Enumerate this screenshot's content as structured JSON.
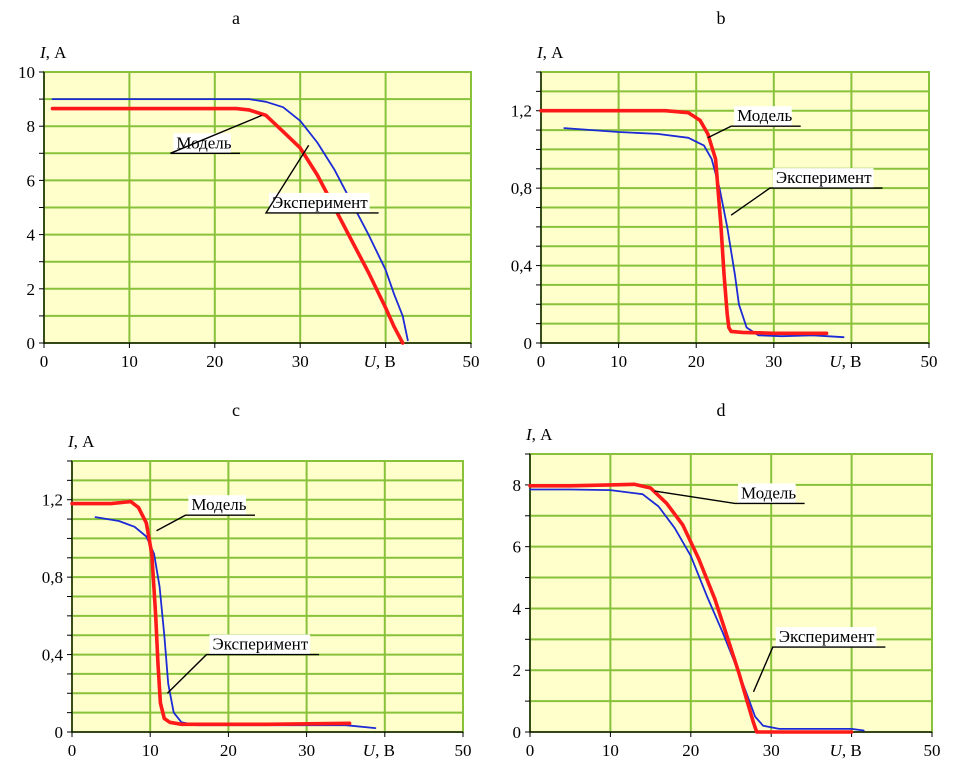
{
  "colors": {
    "plot_background": "#ffffcc",
    "grid": "#88c23a",
    "model": "#ff1a1a",
    "experiment": "#1c2bd6",
    "leader": "#000000"
  },
  "chart_data": [
    {
      "type": "line",
      "panel_label": "a",
      "xlabel_var": "U",
      "xlabel_unit": ", В",
      "ylabel_var": "I",
      "ylabel_unit": ", А",
      "xlim": [
        0,
        50
      ],
      "ylim": [
        0,
        10
      ],
      "xticks": [
        0,
        10,
        20,
        30,
        40,
        50
      ],
      "yticks": [
        0,
        2,
        4,
        6,
        8,
        10
      ],
      "ytick_labels": [
        "0",
        "2",
        "4",
        "6",
        "8",
        "10"
      ],
      "y_minor_step": 1,
      "grid": true,
      "series": [
        {
          "name": "Модель",
          "role": "model",
          "x": [
            1,
            10,
            20,
            22.5,
            24,
            26,
            28,
            30,
            32,
            34,
            36,
            38,
            40,
            41,
            42
          ],
          "y": [
            8.65,
            8.65,
            8.65,
            8.65,
            8.6,
            8.4,
            7.8,
            7.2,
            6.2,
            5.0,
            3.8,
            2.6,
            1.3,
            0.6,
            0
          ]
        },
        {
          "name": "Эксперимент",
          "role": "experiment",
          "x": [
            1,
            10,
            20,
            24,
            26,
            28,
            30,
            32,
            34,
            36,
            38,
            40,
            41,
            42,
            42.6
          ],
          "y": [
            9.0,
            9.0,
            9.0,
            9.0,
            8.9,
            8.7,
            8.2,
            7.4,
            6.4,
            5.2,
            4.0,
            2.7,
            1.8,
            1.0,
            0.1
          ]
        }
      ],
      "legend": [
        {
          "text": "Модель",
          "target": [
            25.5,
            8.4
          ],
          "label_at": [
            14.8,
            7.0
          ]
        },
        {
          "text": "Эксперимент",
          "target": [
            31,
            7.3
          ],
          "label_at": [
            26,
            4.8
          ]
        }
      ]
    },
    {
      "type": "line",
      "panel_label": "b",
      "xlabel_var": "U",
      "xlabel_unit": ", В",
      "ylabel_var": "I",
      "ylabel_unit": ", А",
      "xlim": [
        0,
        50
      ],
      "ylim": [
        0,
        1.4
      ],
      "xticks": [
        0,
        10,
        20,
        30,
        40,
        50
      ],
      "yticks": [
        0,
        0.4,
        0.8,
        1.2
      ],
      "ytick_labels": [
        "0",
        "0,4",
        "0,8",
        "1,2"
      ],
      "y_minor_step": 0.1,
      "grid": true,
      "series": [
        {
          "name": "Модель",
          "role": "model",
          "x": [
            0,
            16,
            19,
            20.5,
            21.5,
            22.5,
            23.2,
            23.6,
            24.0,
            24.2,
            24.5,
            26,
            30,
            33,
            36.8
          ],
          "y": [
            1.2,
            1.2,
            1.19,
            1.15,
            1.08,
            0.95,
            0.6,
            0.35,
            0.15,
            0.08,
            0.06,
            0.055,
            0.05,
            0.05,
            0.05
          ]
        },
        {
          "name": "Эксперимент",
          "role": "experiment",
          "x": [
            3,
            10,
            15,
            19,
            21,
            22,
            23,
            24,
            25,
            25.5,
            26.5,
            28,
            31,
            35,
            39
          ],
          "y": [
            1.11,
            1.09,
            1.08,
            1.06,
            1.02,
            0.95,
            0.8,
            0.6,
            0.35,
            0.2,
            0.08,
            0.04,
            0.035,
            0.04,
            0.03
          ]
        }
      ],
      "legend": [
        {
          "text": "Модель",
          "target": [
            21.5,
            1.06
          ],
          "label_at": [
            24.5,
            1.12
          ]
        },
        {
          "text": "Эксперимент",
          "target": [
            24.5,
            0.66
          ],
          "label_at": [
            29.5,
            0.8
          ]
        }
      ]
    },
    {
      "type": "line",
      "panel_label": "c",
      "xlabel_var": "U",
      "xlabel_unit": ", В",
      "ylabel_var": "I",
      "ylabel_unit": ", А",
      "xlim": [
        0,
        50
      ],
      "ylim": [
        0,
        1.4
      ],
      "xticks": [
        0,
        10,
        20,
        30,
        40,
        50
      ],
      "yticks": [
        0,
        0.4,
        0.8,
        1.2
      ],
      "ytick_labels": [
        "0",
        "0,4",
        "0,8",
        "1,2"
      ],
      "y_minor_step": 0.1,
      "grid": true,
      "series": [
        {
          "name": "Модель",
          "role": "model",
          "x": [
            0,
            5,
            7.5,
            8.5,
            9.5,
            10.2,
            10.7,
            11.0,
            11.3,
            11.8,
            12.5,
            14,
            17,
            25,
            35.5
          ],
          "y": [
            1.18,
            1.18,
            1.19,
            1.16,
            1.08,
            0.92,
            0.6,
            0.35,
            0.15,
            0.07,
            0.05,
            0.04,
            0.04,
            0.04,
            0.045
          ]
        },
        {
          "name": "Эксперимент",
          "role": "experiment",
          "x": [
            3,
            6,
            8,
            9.5,
            10.5,
            11.2,
            11.8,
            12.3,
            13,
            14,
            16,
            20,
            28,
            35,
            38.8
          ],
          "y": [
            1.11,
            1.09,
            1.06,
            1.01,
            0.92,
            0.75,
            0.5,
            0.25,
            0.1,
            0.05,
            0.035,
            0.035,
            0.035,
            0.035,
            0.02
          ]
        }
      ],
      "legend": [
        {
          "text": "Модель",
          "target": [
            10.8,
            1.04
          ],
          "label_at": [
            14.5,
            1.12
          ]
        },
        {
          "text": "Эксперимент",
          "target": [
            12.2,
            0.2
          ],
          "label_at": [
            17.2,
            0.4
          ]
        }
      ]
    },
    {
      "type": "line",
      "panel_label": "d",
      "xlabel_var": "U",
      "xlabel_unit": ", В",
      "ylabel_var": "I",
      "ylabel_unit": ", А",
      "xlim": [
        0,
        50
      ],
      "ylim": [
        0,
        9
      ],
      "xticks": [
        0,
        10,
        20,
        30,
        40,
        50
      ],
      "yticks": [
        0,
        2,
        4,
        6,
        8
      ],
      "ytick_labels": [
        "0",
        "2",
        "4",
        "6",
        "8"
      ],
      "y_minor_step": 1,
      "grid": true,
      "series": [
        {
          "name": "Модель",
          "role": "model",
          "x": [
            0,
            5,
            10,
            13,
            15,
            17,
            19,
            21,
            23,
            24,
            25,
            26,
            27,
            27.8,
            28.2,
            30,
            35,
            40
          ],
          "y": [
            7.97,
            7.97,
            8.0,
            8.02,
            7.9,
            7.4,
            6.7,
            5.6,
            4.3,
            3.5,
            2.7,
            1.9,
            1.0,
            0.3,
            0.0,
            0.0,
            0.0,
            0.0
          ]
        },
        {
          "name": "Эксперимент",
          "role": "experiment",
          "x": [
            0,
            5,
            10,
            14,
            16,
            18,
            20,
            22,
            24,
            26,
            27,
            28,
            29,
            31,
            35,
            40,
            41.5
          ],
          "y": [
            7.85,
            7.85,
            7.83,
            7.7,
            7.3,
            6.6,
            5.7,
            4.4,
            3.2,
            1.9,
            1.2,
            0.5,
            0.2,
            0.1,
            0.1,
            0.1,
            0.05
          ]
        }
      ],
      "legend": [
        {
          "text": "Модель",
          "target": [
            15.5,
            7.8
          ],
          "label_at": [
            25.5,
            7.4
          ]
        },
        {
          "text": "Эксперимент",
          "target": [
            27.8,
            1.3
          ],
          "label_at": [
            30.2,
            2.75
          ]
        }
      ]
    }
  ]
}
